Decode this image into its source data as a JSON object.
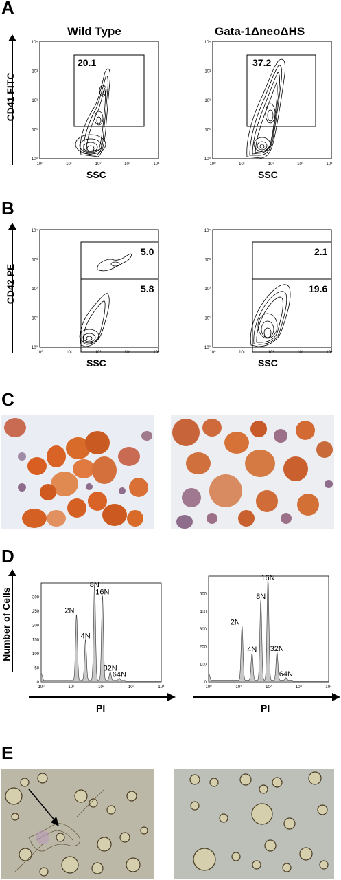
{
  "panels": {
    "A": {
      "letter": "A"
    },
    "B": {
      "letter": "B"
    },
    "C": {
      "letter": "C"
    },
    "D": {
      "letter": "D"
    },
    "E": {
      "letter": "E"
    }
  },
  "columns": {
    "left": "Wild Type",
    "right": "Gata-1ΔneoΔHS"
  },
  "flow_axis_ticks": [
    "10⁰",
    "10¹",
    "10²",
    "10³",
    "10⁴"
  ],
  "panelA": {
    "ylabel": "CD41 FITC",
    "xlabel": "SSC",
    "left_gate": "20.1",
    "right_gate": "37.2"
  },
  "panelB": {
    "ylabel": "CD42 PE",
    "xlabel": "SSC",
    "left_upper": "5.0",
    "left_lower": "5.8",
    "right_upper": "2.1",
    "right_lower": "19.6"
  },
  "panelD": {
    "ylabel": "Number of Cells",
    "xlabel": "PI"
  },
  "chart_data": [
    {
      "type": "area",
      "title": "",
      "xlabel": "PI",
      "ylabel": "Number of Cells",
      "x_scale": "log",
      "xlim": [
        1,
        10000
      ],
      "ylim": [
        0,
        350
      ],
      "yticks": [
        0,
        50,
        100,
        150,
        200,
        250,
        300
      ],
      "peaks": [
        {
          "label": "2N",
          "x": 15,
          "y": 235
        },
        {
          "label": "4N",
          "x": 30,
          "y": 145
        },
        {
          "label": "8N",
          "x": 60,
          "y": 340
        },
        {
          "label": "16N",
          "x": 110,
          "y": 300
        },
        {
          "label": "32N",
          "x": 200,
          "y": 30
        },
        {
          "label": "64N",
          "x": 400,
          "y": 8
        }
      ]
    },
    {
      "type": "area",
      "title": "",
      "xlabel": "PI",
      "ylabel": "Number of Cells",
      "x_scale": "log",
      "xlim": [
        1,
        10000
      ],
      "ylim": [
        0,
        600
      ],
      "yticks": [
        0,
        100,
        200,
        300,
        400,
        500
      ],
      "peaks": [
        {
          "label": "2N",
          "x": 13,
          "y": 310
        },
        {
          "label": "4N",
          "x": 28,
          "y": 155
        },
        {
          "label": "8N",
          "x": 55,
          "y": 455
        },
        {
          "label": "16N",
          "x": 95,
          "y": 580
        },
        {
          "label": "32N",
          "x": 190,
          "y": 160
        },
        {
          "label": "64N",
          "x": 380,
          "y": 15
        }
      ]
    }
  ]
}
